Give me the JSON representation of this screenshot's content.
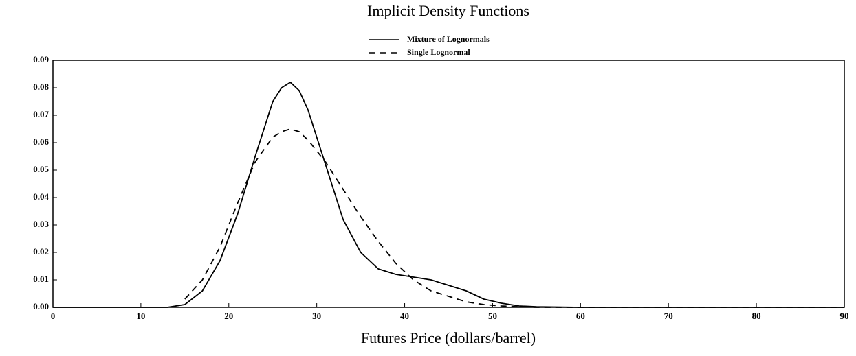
{
  "chart_data": {
    "type": "line",
    "title": "Implicit Density Functions",
    "x_label": "Futures Price (dollars/barrel)",
    "x": [
      0,
      5,
      10,
      13,
      15,
      17,
      19,
      21,
      23,
      25,
      26,
      27,
      28,
      29,
      31,
      33,
      35,
      37,
      39,
      41,
      43,
      45,
      47,
      49,
      51,
      53,
      55,
      60,
      70,
      80,
      90
    ],
    "series": [
      {
        "name": "Mixture of Lognormals",
        "color": "#000000",
        "style": "solid",
        "values": [
          0,
          0,
          0,
          0,
          0.001,
          0.006,
          0.017,
          0.034,
          0.055,
          0.075,
          0.08,
          0.082,
          0.079,
          0.072,
          0.052,
          0.032,
          0.02,
          0.014,
          0.012,
          0.011,
          0.01,
          0.008,
          0.006,
          0.003,
          0.0015,
          0.0005,
          0.0002,
          0,
          0,
          0,
          0
        ]
      },
      {
        "name": "Single Lognormal",
        "color": "#000000",
        "style": "dashed",
        "values": [
          null,
          null,
          null,
          null,
          0.003,
          0.01,
          0.022,
          0.038,
          0.053,
          0.062,
          0.064,
          0.065,
          0.064,
          0.061,
          0.053,
          0.043,
          0.033,
          0.024,
          0.016,
          0.01,
          0.006,
          0.004,
          0.002,
          0.001,
          0.0005,
          0.0002,
          0,
          0,
          0,
          0,
          0
        ]
      }
    ],
    "xlim": [
      0,
      90
    ],
    "xticks": [
      0,
      10,
      20,
      30,
      40,
      50,
      60,
      70,
      80,
      90
    ],
    "ylim": [
      0,
      0.09
    ],
    "yticks": [
      {
        "value": 0,
        "label": "0.00"
      },
      0.01,
      0.02,
      0.03,
      0.04,
      0.05,
      0.06,
      0.07,
      0.08,
      0.09
    ],
    "legend": "top",
    "grid": false
  }
}
